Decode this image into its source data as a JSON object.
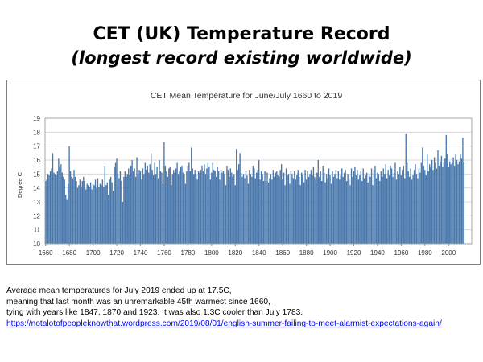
{
  "slide": {
    "title": "CET (UK) Temperature Record",
    "subtitle": "(longest record existing worldwide)"
  },
  "caption": {
    "line1": "Average mean temperatures for July 2019 ended up at 17.5C,",
    "line2": "meaning that last month was an unremarkable 45th warmest since 1660,",
    "line3": "tying with years like 1847, 1870 and 1923. It was also 1.3C cooler than July 1783.",
    "link": "https://notalotofpeopleknowthat.wordpress.com/2019/08/01/english-summer-failing-to-meet-alarmist-expectations-again/"
  },
  "colors": {
    "bar": "#4a78ad",
    "bar_edge": "#3b6697",
    "grid": "#d9d9d9",
    "link": "#0000ee"
  },
  "chart_data": {
    "type": "bar",
    "title": "CET Mean Temperature for June/July 1660 to 2019",
    "xlabel": "",
    "ylabel": "Degree C",
    "ylim": [
      10,
      19
    ],
    "yticks": [
      10,
      11,
      12,
      13,
      14,
      15,
      16,
      17,
      18,
      19
    ],
    "xticks": [
      1660,
      1680,
      1700,
      1720,
      1740,
      1760,
      1780,
      1800,
      1820,
      1840,
      1860,
      1880,
      1900,
      1920,
      1940,
      1960,
      1980,
      2000
    ],
    "grid": "horizontal",
    "legend": "none",
    "x_start": 1660,
    "x_end": 2019,
    "values": [
      14.5,
      14.6,
      15.0,
      14.9,
      15.2,
      15.4,
      16.5,
      15.1,
      15.0,
      14.9,
      15.2,
      16.1,
      15.5,
      15.7,
      15.1,
      14.8,
      14.6,
      13.5,
      13.2,
      14.3,
      17.0,
      15.2,
      14.8,
      14.7,
      15.3,
      14.8,
      14.5,
      14.0,
      14.2,
      14.6,
      14.1,
      14.5,
      14.8,
      14.5,
      13.9,
      14.3,
      14.2,
      14.1,
      14.4,
      13.9,
      14.3,
      14.2,
      14.6,
      14.0,
      14.7,
      14.1,
      14.3,
      14.2,
      14.6,
      14.1,
      15.6,
      14.2,
      14.4,
      13.5,
      14.6,
      14.8,
      14.4,
      13.8,
      15.5,
      15.8,
      16.1,
      15.0,
      14.7,
      15.2,
      14.5,
      13.0,
      14.8,
      15.2,
      14.8,
      15.0,
      15.4,
      14.9,
      15.6,
      16.0,
      15.2,
      15.4,
      14.8,
      16.2,
      15.0,
      15.3,
      15.2,
      14.6,
      15.4,
      15.0,
      15.8,
      15.3,
      15.6,
      15.1,
      15.7,
      16.5,
      15.3,
      14.9,
      15.8,
      15.0,
      15.5,
      14.7,
      16.0,
      15.2,
      15.1,
      14.3,
      17.3,
      15.6,
      15.2,
      14.8,
      15.4,
      15.5,
      14.2,
      15.0,
      15.3,
      15.1,
      15.4,
      15.8,
      15.0,
      15.2,
      15.5,
      15.6,
      15.1,
      15.0,
      14.3,
      15.2,
      15.6,
      15.8,
      15.2,
      16.9,
      15.4,
      15.0,
      15.3,
      14.9,
      14.6,
      15.2,
      15.1,
      15.3,
      15.6,
      15.2,
      15.7,
      15.0,
      15.4,
      15.8,
      15.5,
      14.6,
      15.1,
      15.8,
      15.3,
      15.2,
      14.8,
      15.5,
      15.2,
      14.6,
      15.3,
      15.1,
      15.2,
      15.0,
      14.2,
      15.6,
      15.3,
      14.8,
      15.4,
      15.1,
      14.8,
      15.0,
      14.2,
      16.8,
      15.3,
      15.7,
      16.5,
      15.1,
      14.8,
      15.0,
      14.7,
      15.2,
      14.9,
      14.3,
      15.3,
      15.0,
      14.8,
      15.6,
      15.4,
      14.7,
      15.1,
      15.3,
      16.0,
      14.6,
      15.2,
      15.0,
      14.5,
      15.2,
      14.5,
      15.1,
      14.4,
      14.7,
      15.0,
      14.6,
      15.3,
      14.8,
      15.1,
      15.2,
      14.9,
      14.8,
      15.3,
      15.7,
      14.6,
      15.1,
      14.2,
      15.4,
      14.9,
      15.0,
      14.3,
      15.2,
      15.0,
      14.7,
      15.2,
      14.6,
      14.9,
      15.3,
      14.8,
      14.2,
      15.1,
      14.9,
      14.4,
      15.3,
      14.6,
      15.2,
      14.8,
      15.0,
      15.3,
      14.9,
      15.5,
      14.8,
      14.6,
      15.1,
      16.0,
      14.8,
      15.2,
      14.5,
      15.6,
      15.1,
      14.4,
      15.0,
      14.7,
      15.4,
      14.9,
      14.3,
      15.2,
      14.8,
      15.0,
      15.3,
      14.7,
      15.2,
      14.6,
      14.9,
      15.4,
      14.8,
      15.1,
      15.3,
      14.5,
      15.0,
      14.7,
      14.2,
      15.4,
      14.8,
      15.2,
      15.5,
      14.9,
      15.3,
      14.6,
      14.9,
      15.2,
      14.5,
      15.4,
      14.7,
      14.9,
      15.1,
      14.4,
      15.0,
      14.8,
      15.4,
      14.2,
      15.3,
      15.6,
      14.7,
      15.1,
      15.0,
      14.5,
      15.2,
      14.8,
      15.4,
      15.0,
      15.7,
      14.7,
      15.3,
      14.9,
      15.6,
      15.4,
      14.8,
      15.1,
      15.8,
      14.6,
      15.2,
      15.0,
      15.5,
      14.9,
      15.3,
      15.6,
      14.7,
      17.9,
      15.8,
      15.2,
      14.8,
      15.4,
      14.6,
      14.9,
      15.3,
      15.7,
      15.0,
      14.7,
      15.4,
      15.1,
      15.8,
      16.9,
      15.6,
      15.3,
      14.9,
      16.4,
      15.2,
      15.7,
      15.5,
      16.0,
      15.3,
      16.2,
      15.8,
      15.4,
      16.7,
      15.6,
      15.9,
      16.3,
      15.5,
      15.8,
      16.1,
      17.8,
      16.4,
      15.5,
      15.9,
      15.7,
      15.8,
      16.2,
      15.6,
      16.4,
      16.0,
      15.7,
      15.9,
      16.4,
      16.1,
      17.6,
      15.8
    ]
  }
}
